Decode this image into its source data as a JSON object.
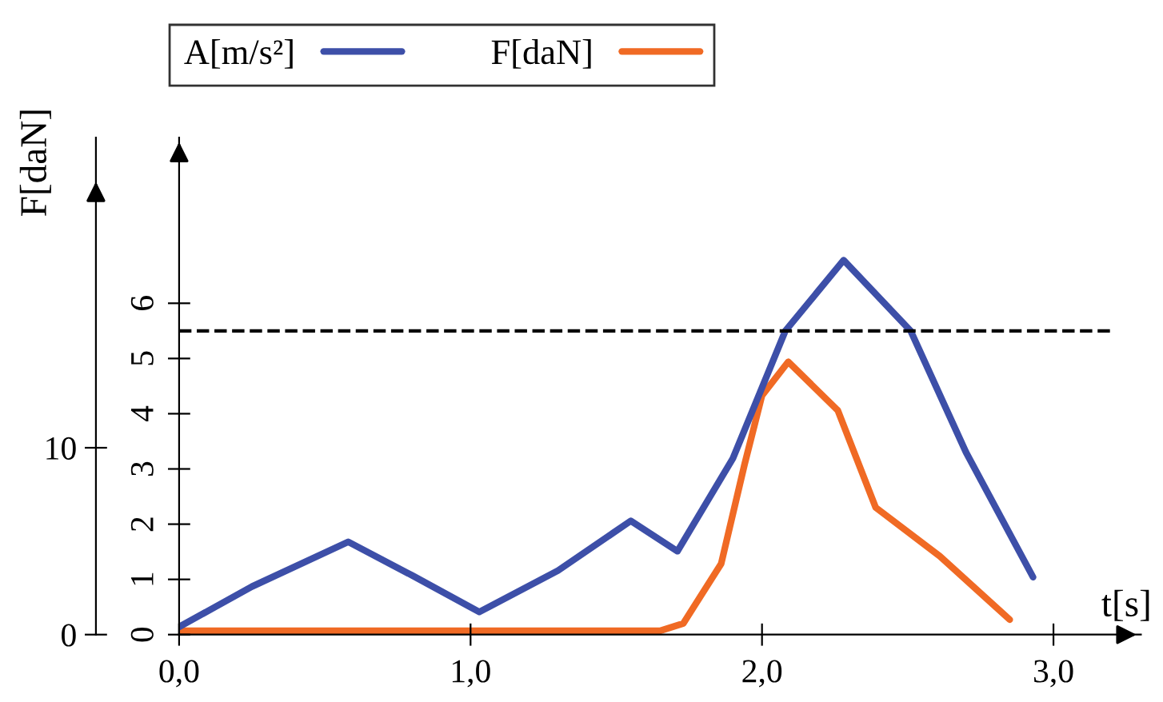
{
  "chart_data": {
    "type": "line",
    "xlabel": "t[s]",
    "y2label": "F[daN]",
    "xlim": [
      0,
      3.3
    ],
    "xticks": [
      {
        "value": 0,
        "label": "0,0"
      },
      {
        "value": 1,
        "label": "1,0"
      },
      {
        "value": 2,
        "label": "2,0"
      },
      {
        "value": 3,
        "label": "3,0"
      }
    ],
    "ylim": [
      0,
      9
    ],
    "yticks": [
      0,
      1,
      2,
      3,
      4,
      5,
      6
    ],
    "y2lim": [
      0,
      26.6
    ],
    "y2ticks": [
      0,
      10
    ],
    "series": [
      {
        "name": "A[m/s²]",
        "color": "#3d4fa8",
        "x": [
          0,
          0.25,
          0.58,
          0.8,
          1.03,
          1.3,
          1.55,
          1.71,
          1.9,
          2.08,
          2.28,
          2.51,
          2.7,
          2.93
        ],
        "values": [
          0.14,
          0.87,
          1.68,
          1.07,
          0.41,
          1.16,
          2.06,
          1.51,
          3.19,
          5.5,
          6.78,
          5.5,
          3.3,
          1.04
        ]
      },
      {
        "name": "F[daN]",
        "color": "#f06a24",
        "axis": "y2",
        "x": [
          0,
          1.0,
          1.65,
          1.73,
          1.86,
          1.94,
          2.0,
          2.09,
          2.26,
          2.39,
          2.61,
          2.85
        ],
        "values": [
          0.2,
          0.2,
          0.2,
          0.6,
          3.8,
          9.1,
          12.8,
          14.6,
          12.0,
          6.8,
          4.2,
          0.8
        ]
      }
    ],
    "ref_lines": [
      {
        "axis": "y",
        "value": 5.5,
        "color": "#000000",
        "line_style": "dashed"
      }
    ],
    "legend": "top",
    "grid": false,
    "marker": "none",
    "line_style": "solid"
  }
}
